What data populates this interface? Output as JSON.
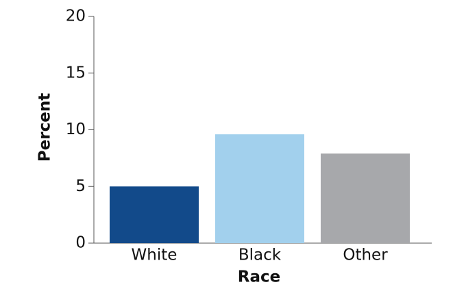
{
  "chart_data": {
    "type": "bar",
    "categories": [
      "White",
      "Black",
      "Other"
    ],
    "values": [
      5.0,
      9.6,
      7.9
    ],
    "colors": [
      "#124a8a",
      "#a2d0ed",
      "#a7a8ab"
    ],
    "x_label": "Race",
    "y_label": "Percent",
    "ylim": [
      0,
      20
    ],
    "yticks": [
      0,
      5,
      10,
      15,
      20
    ],
    "grid": false
  }
}
